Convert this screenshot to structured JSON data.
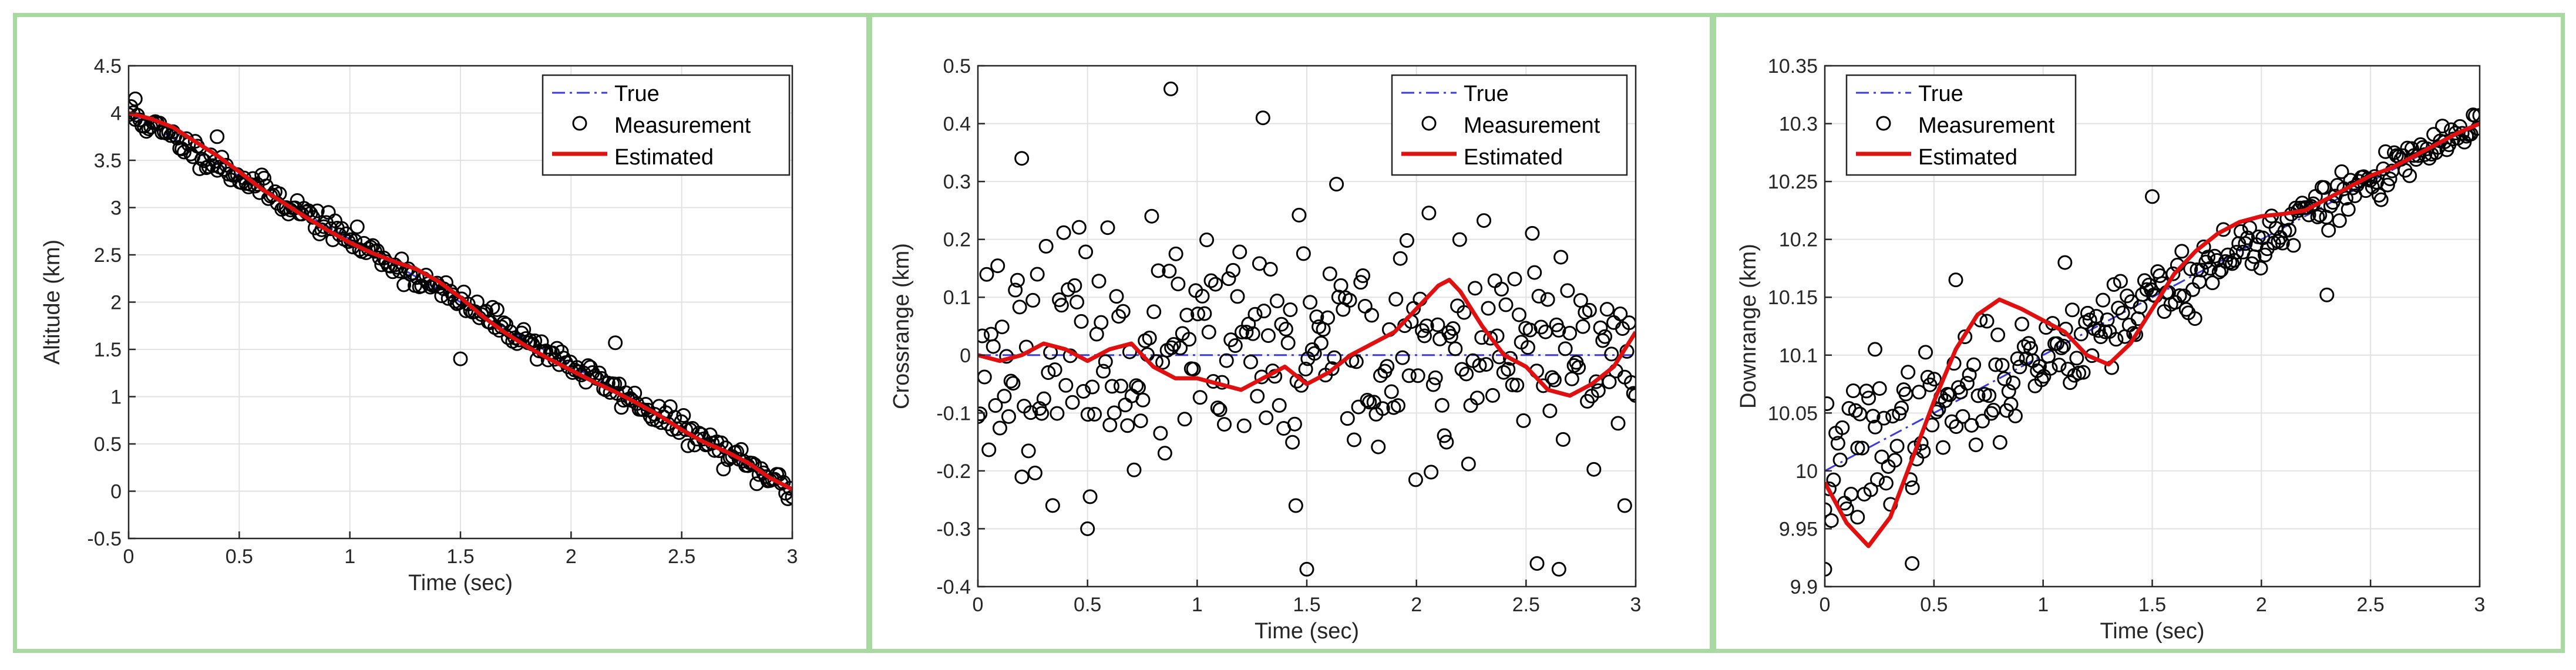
{
  "chart_data": [
    {
      "type": "scatter",
      "title": "",
      "xlabel": "Time (sec)",
      "ylabel": "Altitude (km)",
      "xlim": [
        0,
        3
      ],
      "ylim": [
        -0.5,
        4.5
      ],
      "xticks": [
        "0",
        "0.5",
        "1",
        "1.5",
        "2",
        "2.5",
        "3"
      ],
      "yticks": [
        "-0.5",
        "0",
        "0.5",
        "1",
        "1.5",
        "2",
        "2.5",
        "3",
        "3.5",
        "4",
        "4.5"
      ],
      "legend_position": "top-right",
      "legend": [
        "True",
        "Measurement",
        "Estimated"
      ],
      "series": [
        {
          "name": "True",
          "style": "dash-dot",
          "color": "#3b3bdd",
          "x": [
            0,
            3
          ],
          "y": [
            4.0,
            0.0
          ]
        },
        {
          "name": "Estimated",
          "style": "solid",
          "color": "#e01010",
          "x": [
            0,
            0.1,
            0.2,
            0.3,
            0.4,
            0.5,
            0.6,
            0.7,
            0.8,
            0.9,
            1.0,
            1.1,
            1.2,
            1.3,
            1.4,
            1.5,
            1.6,
            1.7,
            1.8,
            1.9,
            2.0,
            2.1,
            2.2,
            2.3,
            2.4,
            2.5,
            2.6,
            2.7,
            2.8,
            2.9,
            3.0
          ],
          "y": [
            4.0,
            3.94,
            3.85,
            3.7,
            3.55,
            3.38,
            3.2,
            3.05,
            2.9,
            2.76,
            2.63,
            2.52,
            2.43,
            2.35,
            2.22,
            2.05,
            1.85,
            1.68,
            1.53,
            1.4,
            1.28,
            1.16,
            1.05,
            0.93,
            0.8,
            0.65,
            0.52,
            0.42,
            0.3,
            0.14,
            0.02
          ]
        },
        {
          "name": "Measurement",
          "style": "marker",
          "color": "#000000",
          "n": 300,
          "noise": 0.08,
          "seed": 11,
          "outliers": [
            [
              1.5,
              1.4
            ],
            [
              2.2,
              1.57
            ],
            [
              0.03,
              4.15
            ],
            [
              0.4,
              3.75
            ]
          ]
        }
      ]
    },
    {
      "type": "scatter",
      "title": "",
      "xlabel": "Time (sec)",
      "ylabel": "Crossrange (km)",
      "xlim": [
        0,
        3
      ],
      "ylim": [
        -0.4,
        0.5
      ],
      "xticks": [
        "0",
        "0.5",
        "1",
        "1.5",
        "2",
        "2.5",
        "3"
      ],
      "yticks": [
        "-0.4",
        "-0.3",
        "-0.2",
        "-0.1",
        "0",
        "0.1",
        "0.2",
        "0.3",
        "0.4",
        "0.5"
      ],
      "legend_position": "top-right",
      "legend": [
        "True",
        "Measurement",
        "Estimated"
      ],
      "series": [
        {
          "name": "True",
          "style": "dash-dot",
          "color": "#3b3bdd",
          "x": [
            0,
            3
          ],
          "y": [
            0,
            0
          ]
        },
        {
          "name": "Estimated",
          "style": "solid",
          "color": "#e01010",
          "x": [
            0,
            0.1,
            0.2,
            0.3,
            0.4,
            0.5,
            0.6,
            0.7,
            0.8,
            0.9,
            1.0,
            1.1,
            1.2,
            1.3,
            1.4,
            1.5,
            1.6,
            1.7,
            1.8,
            1.9,
            2.0,
            2.05,
            2.1,
            2.15,
            2.2,
            2.3,
            2.4,
            2.5,
            2.6,
            2.7,
            2.8,
            2.9,
            3.0
          ],
          "y": [
            0.0,
            -0.01,
            0.0,
            0.02,
            0.01,
            -0.01,
            0.01,
            0.02,
            -0.02,
            -0.04,
            -0.04,
            -0.05,
            -0.06,
            -0.04,
            -0.02,
            -0.05,
            -0.03,
            0.0,
            0.02,
            0.04,
            0.08,
            0.1,
            0.12,
            0.13,
            0.11,
            0.05,
            0.0,
            -0.02,
            -0.06,
            -0.07,
            -0.05,
            -0.02,
            0.04
          ]
        },
        {
          "name": "Measurement",
          "style": "marker",
          "color": "#000000",
          "n": 300,
          "noise": 0.12,
          "seed": 23,
          "outliers": [
            [
              0.88,
              0.46
            ],
            [
              1.3,
              0.41
            ],
            [
              0.2,
              0.34
            ],
            [
              1.5,
              -0.37
            ],
            [
              2.55,
              -0.36
            ],
            [
              2.65,
              -0.37
            ],
            [
              0.5,
              -0.3
            ],
            [
              2.95,
              -0.26
            ],
            [
              1.45,
              -0.26
            ]
          ]
        }
      ]
    },
    {
      "type": "scatter",
      "title": "",
      "xlabel": "Time (sec)",
      "ylabel": "Downrange (km)",
      "xlim": [
        0,
        3
      ],
      "ylim": [
        9.9,
        10.35
      ],
      "xticks": [
        "0",
        "0.5",
        "1",
        "1.5",
        "2",
        "2.5",
        "3"
      ],
      "yticks": [
        "9.9",
        "9.95",
        "10",
        "10.05",
        "10.1",
        "10.15",
        "10.2",
        "10.25",
        "10.3",
        "10.35"
      ],
      "legend_position": "top-left",
      "legend": [
        "True",
        "Measurement",
        "Estimated"
      ],
      "series": [
        {
          "name": "True",
          "style": "dash-dot",
          "color": "#3b3bdd",
          "x": [
            0,
            3
          ],
          "y": [
            10.0,
            10.3
          ]
        },
        {
          "name": "Estimated",
          "style": "solid",
          "color": "#e01010",
          "x": [
            0,
            0.1,
            0.2,
            0.3,
            0.4,
            0.5,
            0.6,
            0.7,
            0.8,
            0.9,
            1.0,
            1.1,
            1.2,
            1.3,
            1.4,
            1.5,
            1.6,
            1.7,
            1.8,
            1.9,
            2.0,
            2.1,
            2.2,
            2.3,
            2.4,
            2.5,
            2.6,
            2.7,
            2.8,
            2.9,
            3.0
          ],
          "y": [
            9.99,
            9.955,
            9.935,
            9.96,
            10.01,
            10.06,
            10.105,
            10.135,
            10.148,
            10.14,
            10.13,
            10.12,
            10.1,
            10.092,
            10.11,
            10.14,
            10.17,
            10.19,
            10.205,
            10.215,
            10.22,
            10.222,
            10.225,
            10.235,
            10.245,
            10.255,
            10.262,
            10.272,
            10.282,
            10.292,
            10.3
          ]
        },
        {
          "name": "Measurement",
          "style": "marker",
          "color": "#000000",
          "n": 300,
          "noise": 0.02,
          "seed": 37,
          "outliers": [
            [
              0.0,
              9.915
            ],
            [
              0.23,
              10.105
            ],
            [
              0.4,
              9.92
            ],
            [
              1.5,
              10.237
            ],
            [
              2.3,
              10.152
            ],
            [
              0.15,
              9.96
            ],
            [
              0.6,
              10.165
            ],
            [
              1.1,
              10.18
            ]
          ]
        }
      ]
    }
  ]
}
